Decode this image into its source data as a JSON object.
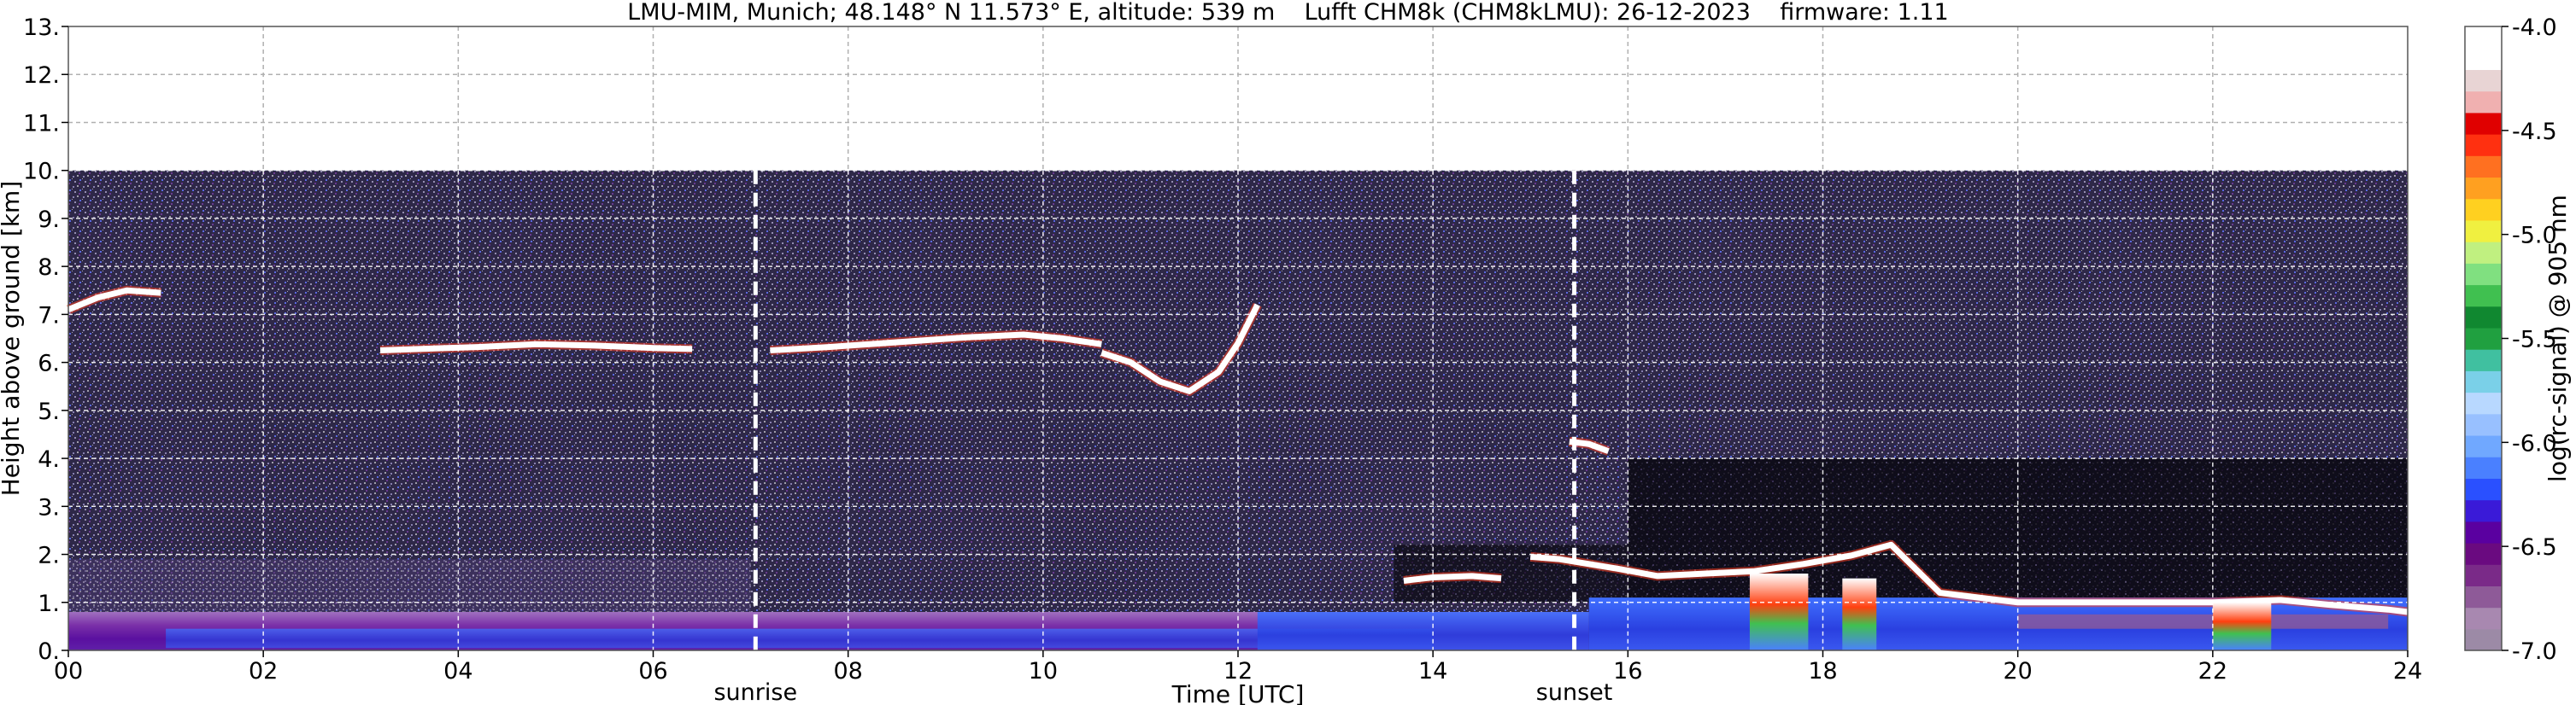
{
  "chart_data": {
    "type": "heatmap",
    "title": "LMU-MIM, Munich; 48.148° N 11.573° E, altitude: 539 m    Lufft CHM8k (CHM8kLMU): 26-12-2023    firmware: 1.11",
    "xlabel": "Time [UTC]",
    "ylabel": "Height above ground [km]",
    "xlim": [
      0,
      24
    ],
    "ylim": [
      0,
      13
    ],
    "x_ticks": [
      "00",
      "02",
      "04",
      "06",
      "08",
      "10",
      "12",
      "14",
      "16",
      "18",
      "20",
      "22",
      "24"
    ],
    "y_ticks": [
      "0.",
      "1.",
      "2.",
      "3.",
      "4.",
      "5.",
      "6.",
      "7.",
      "8.",
      "9.",
      "10.",
      "11.",
      "12.",
      "13."
    ],
    "grid": true,
    "data_top_km": 10,
    "colorbar": {
      "label": "log(rc-signal) @ 905 nm",
      "range": [
        -7.0,
        -4.0
      ],
      "ticks": [
        "-7.0",
        "-6.5",
        "-6.0",
        "-5.5",
        "-5.0",
        "-4.5",
        "-4.0"
      ],
      "colors": [
        "#9c8aa6",
        "#a888b0",
        "#8e5a98",
        "#7a2a88",
        "#6a0a80",
        "#5a00a0",
        "#3a1ad8",
        "#2a50ff",
        "#4a80ff",
        "#70a8ff",
        "#98c0ff",
        "#b8d8ff",
        "#7ad0e8",
        "#40c0a0",
        "#20a040",
        "#108830",
        "#40c050",
        "#80e080",
        "#c0f080",
        "#f0f040",
        "#ffd020",
        "#ffa020",
        "#ff7020",
        "#ff3010",
        "#e00000",
        "#f0b0b0",
        "#e8d4d4",
        "#ffffff",
        "#ffffff"
      ]
    },
    "annotations": [
      {
        "x": 7.05,
        "label": "sunrise"
      },
      {
        "x": 15.45,
        "label": "sunset"
      }
    ],
    "cloud_layers": [
      {
        "t": [
          3.2,
          3.6,
          4.2,
          4.8,
          5.4,
          6.0,
          6.4
        ],
        "h": [
          6.25,
          6.28,
          6.32,
          6.38,
          6.35,
          6.3,
          6.28
        ]
      },
      {
        "t": [
          7.2,
          7.8,
          8.5,
          9.2,
          9.8,
          10.2,
          10.6
        ],
        "h": [
          6.25,
          6.32,
          6.42,
          6.52,
          6.58,
          6.5,
          6.38
        ]
      },
      {
        "t": [
          10.6,
          10.9,
          11.2,
          11.5,
          11.8,
          12.0,
          12.2
        ],
        "h": [
          6.2,
          6.0,
          5.6,
          5.4,
          5.8,
          6.4,
          7.2
        ]
      },
      {
        "t": [
          0.0,
          0.3,
          0.6,
          0.95
        ],
        "h": [
          7.1,
          7.35,
          7.5,
          7.45
        ]
      },
      {
        "t": [
          13.7,
          14.0,
          14.4,
          14.7
        ],
        "h": [
          1.45,
          1.52,
          1.55,
          1.5
        ]
      },
      {
        "t": [
          15.0,
          15.3,
          15.6,
          15.9,
          16.3,
          16.8,
          17.3,
          17.8,
          18.3,
          18.7,
          19.2,
          20.0,
          21.0,
          22.0,
          22.7,
          23.2,
          23.8,
          24.0
        ],
        "h": [
          1.95,
          1.9,
          1.8,
          1.7,
          1.55,
          1.6,
          1.65,
          1.8,
          1.98,
          2.2,
          1.2,
          1.0,
          1.0,
          1.0,
          1.05,
          0.95,
          0.85,
          0.8
        ]
      },
      {
        "t": [
          15.4,
          15.6,
          15.8
        ],
        "h": [
          4.35,
          4.3,
          4.15
        ]
      }
    ],
    "rain_shafts": [
      {
        "t0": 17.25,
        "t1": 17.85,
        "h_top": 1.6
      },
      {
        "t0": 18.2,
        "t1": 18.55,
        "h_top": 1.5
      },
      {
        "t0": 22.0,
        "t1": 22.6,
        "h_top": 1.0
      }
    ]
  }
}
